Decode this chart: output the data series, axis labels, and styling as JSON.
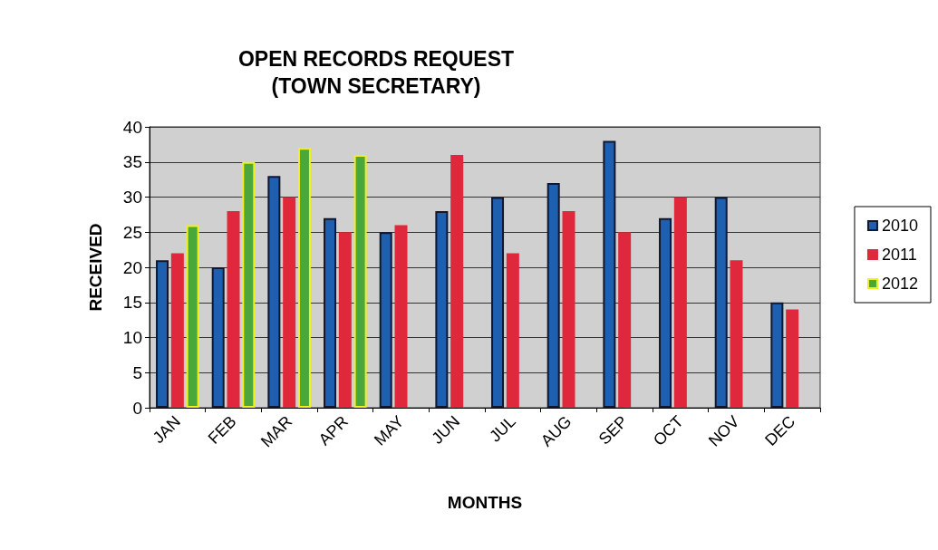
{
  "chart_data": {
    "type": "bar",
    "title": "OPEN RECORDS REQUEST\n(TOWN SECRETARY)",
    "xlabel": "MONTHS",
    "ylabel": "RECEIVED",
    "categories": [
      "JAN",
      "FEB",
      "MAR",
      "APR",
      "MAY",
      "JUN",
      "JUL",
      "AUG",
      "SEP",
      "OCT",
      "NOV",
      "DEC"
    ],
    "series": [
      {
        "name": "2010",
        "color": "#1f5fb0",
        "values": [
          21,
          20,
          33,
          27,
          25,
          28,
          30,
          32,
          38,
          27,
          30,
          15
        ]
      },
      {
        "name": "2011",
        "color": "#e0283c",
        "values": [
          22,
          28,
          30,
          25,
          26,
          36,
          22,
          28,
          25,
          30,
          21,
          14
        ]
      },
      {
        "name": "2012",
        "color": "#4aa83a",
        "values": [
          26,
          35,
          37,
          36,
          null,
          null,
          null,
          null,
          null,
          null,
          null,
          null
        ]
      }
    ],
    "ylim": [
      0,
      40
    ],
    "yticks": [
      0,
      5,
      10,
      15,
      20,
      25,
      30,
      35,
      40
    ],
    "grid": "y",
    "legend": "right"
  }
}
